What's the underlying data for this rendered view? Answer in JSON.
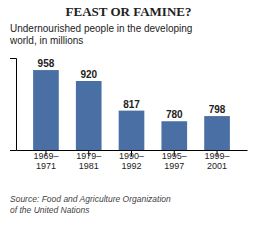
{
  "chart_data": {
    "type": "bar",
    "title": "FEAST OR FAMINE?",
    "subtitle": "Undernourished people in the developing\nworld, in millions",
    "annotations": [
      "Source: Food and Agriculture Organization\nof the United Nations"
    ],
    "categories": [
      "1969–\n1971",
      "1979–\n1981",
      "1990–\n1992",
      "1995–\n1997",
      "1999–\n2001"
    ],
    "values": [
      958,
      920,
      817,
      780,
      798
    ],
    "color": "#4a6fa5",
    "ylim": [
      680,
      1000
    ],
    "grid": false,
    "data_labels": true,
    "tick_labels": "x"
  }
}
